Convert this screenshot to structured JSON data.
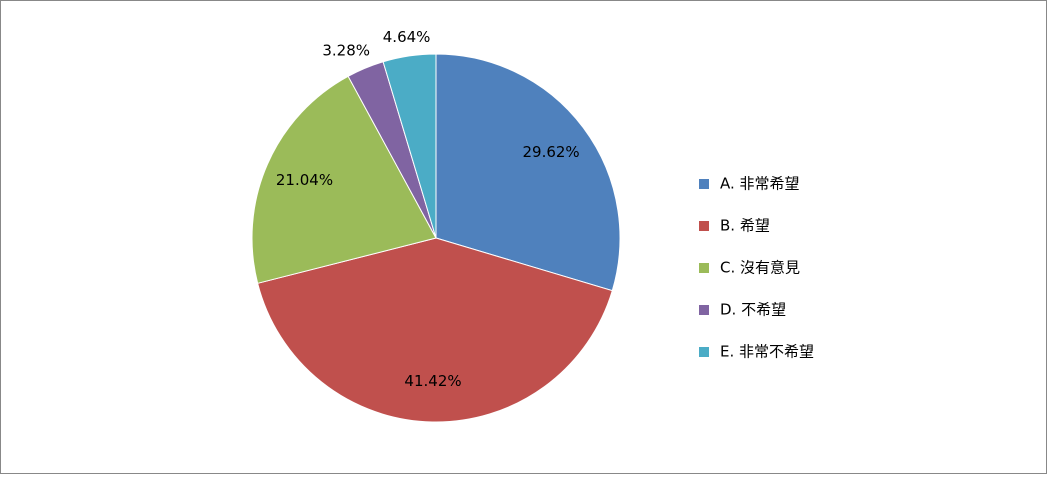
{
  "chart_data": {
    "type": "pie",
    "categories": [
      "A. 非常希望",
      "B. 希望",
      "C. 沒有意見",
      "D. 不希望",
      "E. 非常不希望"
    ],
    "values": [
      29.62,
      41.42,
      21.04,
      3.28,
      4.64
    ],
    "value_labels": [
      "29.62%",
      "41.42%",
      "21.04%",
      "3.28%",
      "4.64%"
    ],
    "colors": [
      "#4f81bd",
      "#c0504d",
      "#9bbb59",
      "#8064a2",
      "#4bacc6"
    ],
    "legend": "right"
  }
}
